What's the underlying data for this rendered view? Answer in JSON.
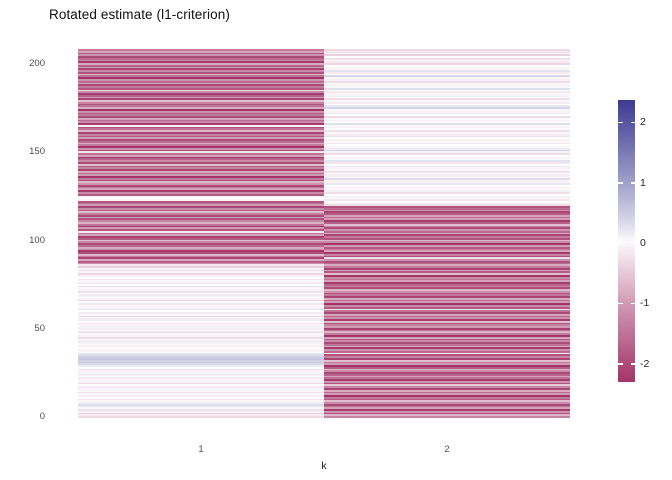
{
  "title": "Rotated estimate (l1-criterion)",
  "colors": {
    "background": "#ffffff",
    "axis_text": "#4d4d4d",
    "title_text": "#111111",
    "legend_text": "#262626",
    "gradient_low": "#a23568",
    "gradient_mid": "#ffffff",
    "gradient_high": "#3f3a92"
  },
  "chart_data": {
    "type": "heatmap",
    "title": "Rotated estimate (l1-criterion)",
    "xlabel": "k",
    "ylabel": "",
    "x_categories": [
      "1",
      "2"
    ],
    "y_ticks": [
      0,
      50,
      100,
      150,
      200
    ],
    "ylim": [
      0,
      209
    ],
    "grid": false,
    "legend": {
      "position": "right",
      "ticks": [
        2,
        1,
        0,
        -1,
        -2
      ],
      "tick_labels": [
        "2",
        "1",
        "0",
        "-1",
        "-2"
      ],
      "limits": [
        -2.3,
        2.37
      ]
    },
    "series": [
      {
        "name": "1",
        "values": [
          -0.3,
          -0.15,
          -0.35,
          -0.1,
          -0.25,
          0.05,
          0.2,
          0.3,
          0.15,
          -0.05,
          -0.2,
          0.0,
          -0.1,
          0.05,
          -0.25,
          -0.05,
          0.1,
          -0.15,
          0.0,
          -0.3,
          -0.1,
          0.05,
          -0.2,
          0.0,
          -0.15,
          0.1,
          -0.05,
          -0.25,
          0.0,
          0.15,
          0.35,
          0.5,
          0.4,
          0.55,
          0.45,
          0.3,
          0.2,
          0.05,
          -0.1,
          0.0,
          -0.2,
          -0.05,
          0.1,
          -0.15,
          0.0,
          -0.3,
          -0.1,
          0.05,
          -0.25,
          0.0,
          -0.15,
          0.1,
          -0.05,
          -0.2,
          0.0,
          0.15,
          -0.1,
          -0.3,
          0.05,
          -0.15,
          0.0,
          -0.25,
          0.1,
          -0.05,
          -0.2,
          0.0,
          -0.35,
          -0.1,
          0.05,
          -0.15,
          0.0,
          -0.25,
          0.1,
          -0.05,
          -0.3,
          0.0,
          -0.15,
          0.05,
          -0.2,
          0.0,
          -0.1,
          -0.35,
          -0.05,
          -0.25,
          -0.1,
          -0.4,
          -0.2,
          -1.1,
          -1.8,
          -0.85,
          -2.1,
          -1.4,
          -0.7,
          -1.95,
          -2.25,
          -1.15,
          -0.8,
          -1.6,
          -2.0,
          -1.3,
          -0.6,
          -1.75,
          -2.15,
          -0.9,
          -1.45,
          -0.15,
          -1.85,
          -1.05,
          -2.2,
          -1.5,
          -0.75,
          -1.25,
          -1.9,
          -0.95,
          -2.05,
          -1.35,
          -0.65,
          -1.7,
          -1.2,
          -2.1,
          -1.0,
          -1.55,
          -1.85,
          -0.05,
          0.0,
          -0.1,
          -1.8,
          -1.2,
          -2.2,
          -0.9,
          -1.5,
          -2.0,
          -1.1,
          -0.7,
          -1.9,
          -1.4,
          -2.3,
          -1.0,
          -1.6,
          -0.8,
          -2.1,
          -1.3,
          -1.8,
          -0.6,
          -2.0,
          -1.2,
          -1.7,
          -2.2,
          -0.9,
          -1.5,
          -0.2,
          -1.9,
          -1.1,
          -2.3,
          -1.4,
          -0.8,
          -1.6,
          -2.0,
          -1.0,
          -1.8,
          -1.3,
          -2.1,
          -0.7,
          -1.5,
          -1.9,
          -0.1,
          -2.2,
          -1.2,
          -1.6,
          -0.9,
          -2.0,
          -1.4,
          -1.8,
          -1.1,
          -2.3,
          -0.8,
          -1.5,
          -1.9,
          -1.3,
          -0.6,
          -2.1,
          -1.0,
          -1.7,
          -2.2,
          -1.2,
          -0.3,
          -1.8,
          -1.4,
          -2.0,
          -0.9,
          -1.6,
          -1.1,
          -2.3,
          -1.5,
          -0.7,
          -1.9,
          -1.2,
          -2.1,
          -1.0,
          -1.7,
          -0.8,
          -2.2,
          -1.3,
          -1.6,
          -2.0,
          -1.1,
          -1.8,
          -0.9,
          -1.4
        ]
      },
      {
        "name": "2",
        "values": [
          -1.3,
          -0.7,
          -1.9,
          -1.1,
          -2.2,
          -0.9,
          -1.5,
          -2.0,
          -1.2,
          -0.6,
          -1.8,
          -1.4,
          -2.3,
          -1.0,
          -1.6,
          -0.8,
          -2.1,
          -1.3,
          -0.5,
          -1.9,
          -1.1,
          -2.2,
          -1.5,
          -0.9,
          -1.7,
          -2.0,
          -1.2,
          -0.7,
          -1.8,
          -2.3,
          -1.0,
          -1.4,
          -0.6,
          -2.1,
          -1.3,
          -1.9,
          -0.15,
          -1.6,
          -1.1,
          -2.2,
          -0.8,
          -1.5,
          -2.0,
          -1.2,
          -1.8,
          -0.9,
          -2.3,
          -1.4,
          -0.7,
          -1.6,
          -2.1,
          -1.0,
          -1.3,
          -1.9,
          -0.6,
          -2.2,
          -1.1,
          -1.7,
          -0.9,
          -2.0,
          -1.5,
          -0.2,
          -1.8,
          -1.2,
          -2.3,
          -1.0,
          -1.6,
          -0.8,
          -2.1,
          -1.4,
          -1.9,
          -1.1,
          -0.7,
          -2.0,
          -1.3,
          -1.7,
          -2.2,
          -0.9,
          -1.5,
          -1.2,
          -2.3,
          -0.6,
          -1.8,
          -1.0,
          -2.1,
          -1.4,
          -0.8,
          -1.6,
          -1.9,
          -1.1,
          -0.25,
          -2.0,
          -1.3,
          -2.2,
          -0.9,
          -1.5,
          -1.8,
          -1.0,
          -2.3,
          -1.2,
          -0.7,
          -1.9,
          -1.4,
          -2.1,
          -0.8,
          -1.6,
          -1.1,
          -2.0,
          -1.3,
          -0.6,
          -1.7,
          -2.2,
          -1.0,
          -1.5,
          -0.9,
          -1.8,
          -2.1,
          -1.2,
          -1.6,
          -1.9,
          -0.3,
          -0.1,
          0.0,
          -0.2,
          0.05,
          -0.15,
          0.0,
          -0.25,
          0.1,
          -0.05,
          -0.15,
          0.0,
          0.2,
          -0.1,
          0.05,
          0.3,
          0.1,
          -0.15,
          0.0,
          -0.25,
          0.05,
          -0.1,
          0.15,
          0.0,
          -0.2,
          0.25,
          0.05,
          -0.1,
          0.0,
          -0.3,
          0.1,
          0.35,
          0.15,
          -0.05,
          0.0,
          -0.2,
          0.05,
          -0.1,
          0.0,
          0.25,
          -0.15,
          0.05,
          -0.25,
          0.0,
          0.1,
          -0.05,
          0.3,
          0.0,
          -0.15,
          0.05,
          -0.3,
          0.0,
          0.15,
          -0.1,
          0.05,
          0.4,
          0.2,
          0.0,
          -0.15,
          0.05,
          -0.25,
          0.0,
          0.1,
          -0.05,
          -0.2,
          0.0,
          0.3,
          0.05,
          -0.1,
          0.0,
          -0.3,
          0.1,
          -0.05,
          0.35,
          0.0,
          -0.15,
          0.25,
          0.05,
          -0.1,
          0.0,
          -0.35,
          -0.15,
          0.05,
          -0.25,
          0.0,
          -0.4,
          -0.1,
          -0.2,
          -0.3
        ]
      }
    ]
  }
}
